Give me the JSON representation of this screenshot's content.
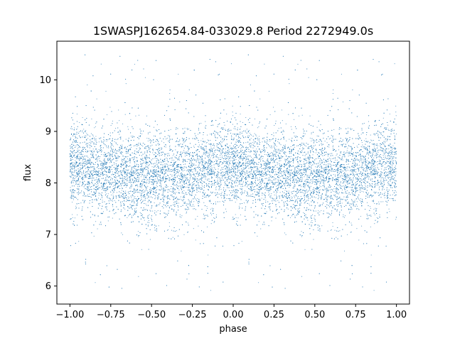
{
  "chart_data": {
    "type": "scatter",
    "title": "1SWASPJ162654.84-033029.8 Period 2272949.0s",
    "xlabel": "phase",
    "ylabel": "flux",
    "xlim": [
      -1.08,
      1.08
    ],
    "ylim": [
      5.65,
      10.75
    ],
    "xticks": [
      -1.0,
      -0.75,
      -0.5,
      -0.25,
      0.0,
      0.25,
      0.5,
      0.75,
      1.0
    ],
    "xtick_labels": [
      "−1.00",
      "−0.75",
      "−0.50",
      "−0.25",
      "0.00",
      "0.25",
      "0.50",
      "0.75",
      "1.00"
    ],
    "yticks": [
      6,
      7,
      8,
      9,
      10
    ],
    "ytick_labels": [
      "6",
      "7",
      "8",
      "9",
      "10"
    ],
    "grid": false,
    "legend": false,
    "marker_color": "#1f77b4",
    "series": [
      {
        "x_range": [
          -1.0,
          1.0
        ],
        "base_flux": 8.2,
        "typical_band": [
          7.4,
          9.0
        ],
        "outlier_range": [
          5.9,
          10.5
        ],
        "periodic_in_phase": 1.0
      }
    ]
  }
}
